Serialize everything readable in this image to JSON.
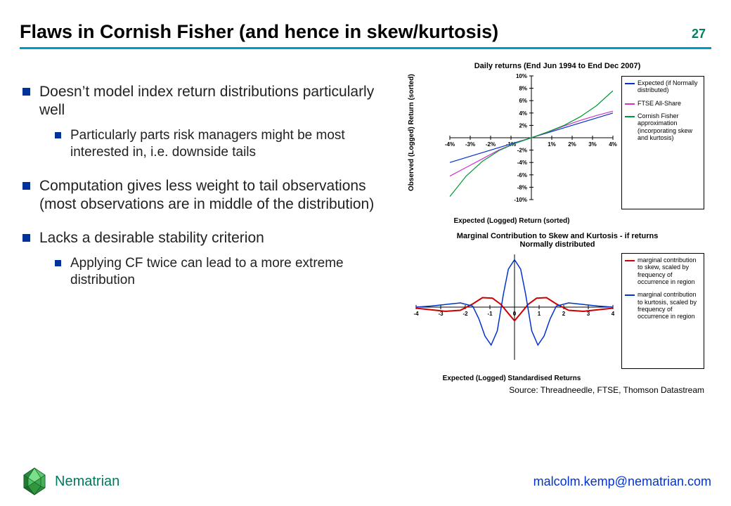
{
  "header": {
    "title": "Flaws in Cornish Fisher (and hence in skew/kurtosis)",
    "page_number": "27",
    "underline_color": "#0099cc"
  },
  "bullets": [
    {
      "text": "Doesn’t model index return distributions particularly well",
      "sub": [
        {
          "text": "Particularly parts risk managers might be most interested in, i.e. downside tails"
        }
      ]
    },
    {
      "text": "Computation gives less weight to tail observations (most observations are in middle of the distribution)",
      "sub": []
    },
    {
      "text": "Lacks a desirable stability criterion",
      "sub": [
        {
          "text": "Applying CF twice can lead to a more extreme distribution"
        }
      ]
    }
  ],
  "chart1": {
    "type": "line",
    "title": "Daily returns (End Jun 1994 to End Dec 2007)",
    "xlabel": "Expected (Logged) Return (sorted)",
    "ylabel": "Observed (Logged) Return (sorted)",
    "xlim": [
      -4,
      4
    ],
    "ylim": [
      -10,
      10
    ],
    "xticks": [
      -4,
      -3,
      -2,
      -1,
      1,
      2,
      3,
      4
    ],
    "xtick_labels": [
      "-4%",
      "-3%",
      "-2%",
      "-1%",
      "1%",
      "2%",
      "3%",
      "4%"
    ],
    "yticks": [
      -10,
      -8,
      -6,
      -4,
      -2,
      2,
      4,
      6,
      8,
      10
    ],
    "ytick_labels": [
      "-10%",
      "-8%",
      "-6%",
      "-4%",
      "-2%",
      "2%",
      "4%",
      "6%",
      "8%",
      "10%"
    ],
    "series": [
      {
        "name": "Expected (if Normally distributed)",
        "color": "#0033cc",
        "width": 1.2,
        "points": [
          [
            -4,
            -4
          ],
          [
            4,
            4
          ]
        ]
      },
      {
        "name": "FTSE All-Share",
        "color": "#cc33cc",
        "width": 1.2,
        "points": [
          [
            -4,
            -6.2
          ],
          [
            -3.2,
            -4.8
          ],
          [
            -2.4,
            -3.4
          ],
          [
            -1.6,
            -2.0
          ],
          [
            -0.8,
            -0.9
          ],
          [
            0,
            0
          ],
          [
            0.8,
            0.9
          ],
          [
            1.6,
            1.9
          ],
          [
            2.4,
            2.8
          ],
          [
            3.2,
            3.6
          ],
          [
            4,
            4.3
          ]
        ]
      },
      {
        "name": "Cornish Fisher approximation (incorporating skew and kurtosis)",
        "color": "#009933",
        "width": 1.2,
        "points": [
          [
            -4,
            -9.5
          ],
          [
            -3.2,
            -6.2
          ],
          [
            -2.4,
            -3.8
          ],
          [
            -1.6,
            -2.1
          ],
          [
            -0.8,
            -0.9
          ],
          [
            0,
            0
          ],
          [
            0.8,
            0.95
          ],
          [
            1.6,
            2.0
          ],
          [
            2.4,
            3.4
          ],
          [
            3.2,
            5.2
          ],
          [
            4,
            7.6
          ]
        ]
      }
    ],
    "axis_color": "#000000",
    "background_color": "#ffffff"
  },
  "chart2": {
    "type": "line",
    "title": "Marginal Contribution to Skew and Kurtosis - if returns Normally distributed",
    "xlabel": "Expected (Logged) Standardised Returns",
    "xlim": [
      -4,
      4
    ],
    "ylim": [
      -1,
      1
    ],
    "xticks": [
      -4,
      -3,
      -2,
      -1,
      0,
      1,
      2,
      3,
      4
    ],
    "xtick_labels": [
      "-4",
      "-3",
      "-2",
      "-1",
      "0",
      "1",
      "2",
      "3",
      "4"
    ],
    "series": [
      {
        "name": "marginal contribution to skew, scaled by frequency of occurrence in region",
        "color": "#cc0000",
        "width": 2,
        "points": [
          [
            -4,
            -0.02
          ],
          [
            -3.4,
            -0.05
          ],
          [
            -2.8,
            -0.08
          ],
          [
            -2.2,
            -0.06
          ],
          [
            -1.7,
            0.06
          ],
          [
            -1.3,
            0.18
          ],
          [
            -0.9,
            0.17
          ],
          [
            -0.55,
            0.05
          ],
          [
            -0.25,
            -0.12
          ],
          [
            0,
            -0.26
          ],
          [
            0.25,
            -0.12
          ],
          [
            0.55,
            0.05
          ],
          [
            0.9,
            0.17
          ],
          [
            1.3,
            0.18
          ],
          [
            1.7,
            0.06
          ],
          [
            2.2,
            -0.06
          ],
          [
            2.8,
            -0.08
          ],
          [
            3.4,
            -0.05
          ],
          [
            4,
            -0.02
          ]
        ]
      },
      {
        "name": "marginal contribution to kurtosis, scaled by frequency of occurrence in region",
        "color": "#0033cc",
        "width": 1.5,
        "points": [
          [
            -4,
            0.0
          ],
          [
            -3.4,
            0.02
          ],
          [
            -2.8,
            0.05
          ],
          [
            -2.2,
            0.08
          ],
          [
            -1.7,
            0.02
          ],
          [
            -1.45,
            -0.22
          ],
          [
            -1.2,
            -0.55
          ],
          [
            -0.95,
            -0.72
          ],
          [
            -0.7,
            -0.45
          ],
          [
            -0.45,
            0.25
          ],
          [
            -0.25,
            0.72
          ],
          [
            0,
            0.9
          ],
          [
            0.25,
            0.72
          ],
          [
            0.45,
            0.25
          ],
          [
            0.7,
            -0.45
          ],
          [
            0.95,
            -0.72
          ],
          [
            1.2,
            -0.55
          ],
          [
            1.45,
            -0.22
          ],
          [
            1.7,
            0.02
          ],
          [
            2.2,
            0.08
          ],
          [
            2.8,
            0.05
          ],
          [
            3.4,
            0.02
          ],
          [
            4,
            0.0
          ]
        ]
      }
    ],
    "axis_color": "#000000",
    "background_color": "#ffffff"
  },
  "source": "Source: Threadneedle, FTSE, Thomson Datastream",
  "footer": {
    "brand": "Nematrian",
    "brand_color": "#007a5e",
    "email": "malcolm.kemp@nematrian.com",
    "email_color": "#0033cc"
  }
}
